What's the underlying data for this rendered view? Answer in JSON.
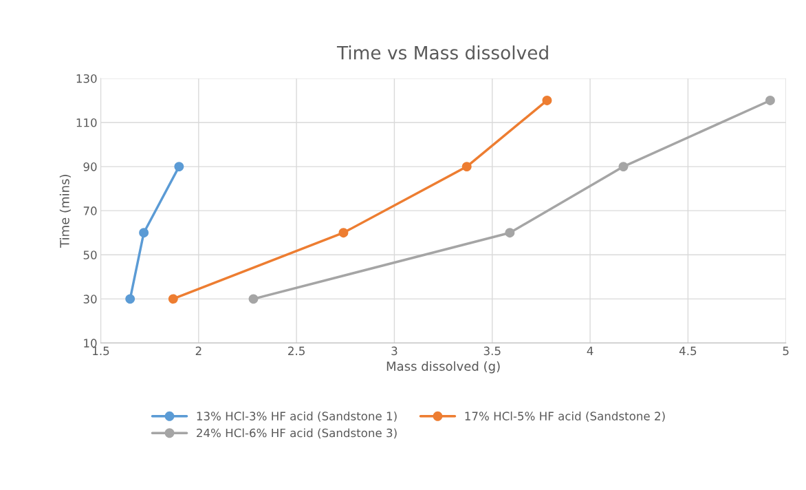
{
  "chart_data": {
    "type": "line",
    "title": "Time vs Mass dissolved",
    "xlabel": "Mass dissolved (g)",
    "ylabel": "Time (mins)",
    "series": [
      {
        "name": "13% HCl-3% HF acid (Sandstone 1)",
        "color": "#5b9bd5",
        "x": [
          1.65,
          1.72,
          1.9
        ],
        "values": [
          30,
          60,
          90
        ]
      },
      {
        "name": "17% HCl-5% HF acid (Sandstone 2)",
        "color": "#ed7d31",
        "x": [
          1.87,
          2.74,
          3.37,
          3.78
        ],
        "values": [
          30,
          60,
          90,
          120
        ]
      },
      {
        "name": "24% HCl-6% HF acid (Sandstone 3)",
        "color": "#a5a5a5",
        "x": [
          2.28,
          3.59,
          4.17,
          4.92
        ],
        "values": [
          30,
          60,
          90,
          120
        ]
      }
    ],
    "xlim": [
      1.5,
      5
    ],
    "xticks": [
      1.5,
      2,
      2.5,
      3,
      3.5,
      4,
      4.5,
      5
    ],
    "ylim": [
      10,
      130
    ],
    "yticks": [
      10,
      30,
      50,
      70,
      90,
      110,
      130
    ],
    "grid": true,
    "legend": "bottom",
    "marker": "circle",
    "line_style": "solid"
  }
}
